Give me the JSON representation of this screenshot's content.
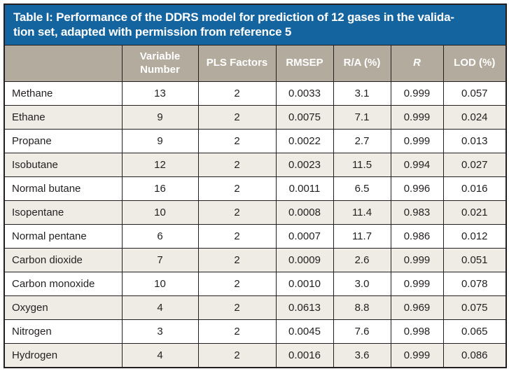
{
  "table": {
    "title_line1": "Table I: Performance of the DDRS model for prediction of 12 gases in the valida-",
    "title_line2": "tion set, adapted with permission from reference 5",
    "columns": [
      "",
      "Variable Number",
      "PLS Factors",
      "RMSEP",
      "R/A (%)",
      "R",
      "LOD (%)"
    ],
    "rows": [
      {
        "cells": [
          "Methane",
          "13",
          "2",
          "0.0033",
          "3.1",
          "0.999",
          "0.057"
        ]
      },
      {
        "cells": [
          "Ethane",
          "9",
          "2",
          "0.0075",
          "7.1",
          "0.999",
          "0.024"
        ]
      },
      {
        "cells": [
          "Propane",
          "9",
          "2",
          "0.0022",
          "2.7",
          "0.999",
          "0.013"
        ]
      },
      {
        "cells": [
          "Isobutane",
          "12",
          "2",
          "0.0023",
          "11.5",
          "0.994",
          "0.027"
        ]
      },
      {
        "cells": [
          "Normal butane",
          "16",
          "2",
          "0.0011",
          "6.5",
          "0.996",
          "0.016"
        ]
      },
      {
        "cells": [
          "Isopentane",
          "10",
          "2",
          "0.0008",
          "11.4",
          "0.983",
          "0.021"
        ]
      },
      {
        "cells": [
          "Normal pentane",
          "6",
          "2",
          "0.0007",
          "11.7",
          "0.986",
          "0.012"
        ]
      },
      {
        "cells": [
          "Carbon dioxide",
          "7",
          "2",
          "0.0009",
          "2.6",
          "0.999",
          "0.051"
        ]
      },
      {
        "cells": [
          "Carbon monoxide",
          "10",
          "2",
          "0.0010",
          "3.0",
          "0.999",
          "0.078"
        ]
      },
      {
        "cells": [
          "Oxygen",
          "4",
          "2",
          "0.0613",
          "8.8",
          "0.969",
          "0.075"
        ]
      },
      {
        "cells": [
          "Nitrogen",
          "3",
          "2",
          "0.0045",
          "7.6",
          "0.998",
          "0.065"
        ]
      },
      {
        "cells": [
          "Hydrogen",
          "4",
          "2",
          "0.0016",
          "3.6",
          "0.999",
          "0.086"
        ]
      }
    ]
  },
  "colors": {
    "title_bg": "#1464A0",
    "title_text": "#FFFFFF",
    "header_bg": "#B3AB9E",
    "header_text": "#FFFFFF",
    "row_bg": "#FFFFFF",
    "row_alt_bg": "#EFECE5",
    "body_text": "#231F20",
    "border": "#231F20"
  }
}
